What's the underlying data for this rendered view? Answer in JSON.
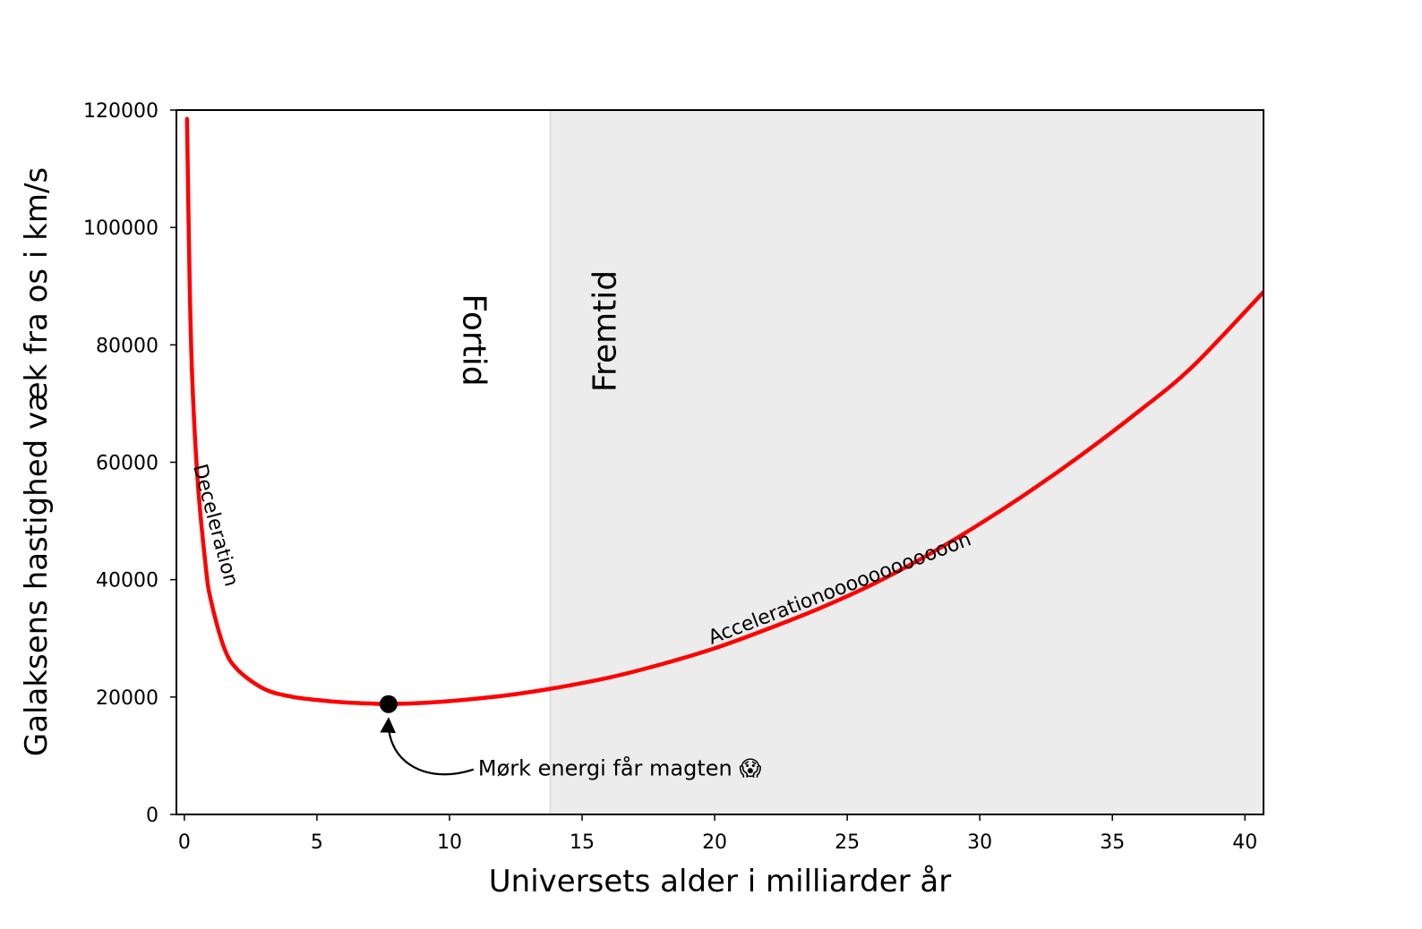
{
  "chart_data": {
    "type": "line",
    "title": "",
    "xlabel": "Universets alder i milliarder år",
    "ylabel": "Galaksens hastighed væk fra os i km/s",
    "xlim": [
      -0.3,
      40.7
    ],
    "ylim": [
      0,
      120000
    ],
    "x_ticks": [
      0,
      5,
      10,
      15,
      20,
      25,
      30,
      35,
      40
    ],
    "y_ticks": [
      0,
      20000,
      40000,
      60000,
      80000,
      100000,
      120000
    ],
    "grid": false,
    "legend": "none",
    "series": [
      {
        "color": "#ff0000",
        "x": [
          0.1,
          0.2,
          0.3,
          0.5,
          0.8,
          1.0,
          1.5,
          2.0,
          3.0,
          4.0,
          5.0,
          6.0,
          7.0,
          7.7,
          9.0,
          10.0,
          12.0,
          13.8,
          16.0,
          18.0,
          20.0,
          22.0,
          24.0,
          26.0,
          28.0,
          30.0,
          32.0,
          34.0,
          36.0,
          38.0,
          40.7
        ],
        "y": [
          118500,
          90500,
          74000,
          57000,
          42500,
          36500,
          28400,
          24700,
          21400,
          20100,
          19500,
          19100,
          18900,
          18800,
          19000,
          19300,
          20200,
          21400,
          23300,
          25600,
          28300,
          31600,
          35200,
          39300,
          44100,
          49500,
          55400,
          61800,
          68700,
          76200,
          89000
        ]
      }
    ],
    "regions": [
      {
        "label": "Fortid",
        "from": -0.3,
        "to": 13.8,
        "color": "#ffffff"
      },
      {
        "label": "Fremtid",
        "from": 13.8,
        "to": 40.7,
        "color": "#ececec"
      }
    ],
    "curve_labels": [
      {
        "text": "Deceleration"
      },
      {
        "text": "Accelerationoooooooooooon"
      }
    ],
    "marker": {
      "x": 7.7,
      "y": 18800,
      "color": "#000000"
    },
    "annotation": {
      "text": "Mørk energi får magten 😱",
      "x": 7.7,
      "y": 18800
    },
    "colors": {
      "curve": "#ff0000",
      "future_region": "#ececec",
      "divider": "#dddddd"
    }
  }
}
